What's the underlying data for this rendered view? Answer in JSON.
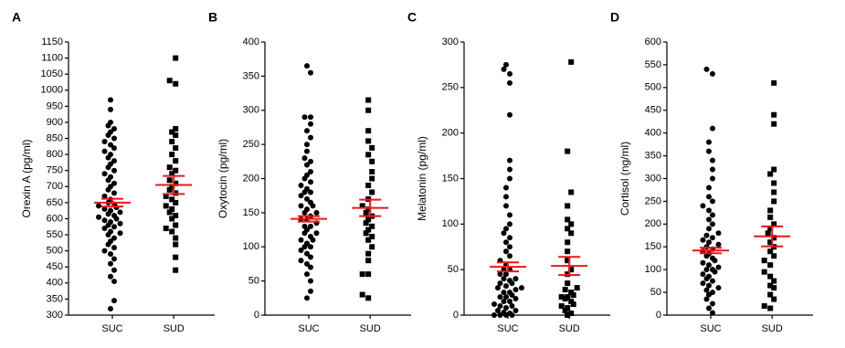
{
  "chart_data": [
    {
      "type": "strip",
      "panel_label": "A",
      "ylabel": "Orexin A (pg/ml)",
      "categories": [
        "SUC",
        "SUD"
      ],
      "markers": [
        "circle",
        "square"
      ],
      "point_color": "#000000",
      "mean_color": "#e8191a",
      "ylim": [
        300,
        1150
      ],
      "yticks": [
        300,
        350,
        400,
        450,
        500,
        550,
        600,
        650,
        700,
        750,
        800,
        850,
        900,
        950,
        1000,
        1050,
        1100,
        1150
      ],
      "groups": [
        {
          "values": [
            320,
            345,
            405,
            420,
            440,
            460,
            475,
            490,
            500,
            510,
            520,
            530,
            540,
            550,
            555,
            560,
            570,
            575,
            580,
            585,
            590,
            595,
            600,
            605,
            610,
            615,
            620,
            625,
            630,
            635,
            640,
            645,
            650,
            660,
            670,
            680,
            690,
            700,
            710,
            720,
            730,
            740,
            750,
            760,
            770,
            780,
            790,
            800,
            810,
            820,
            830,
            840,
            850,
            860,
            870,
            880,
            890,
            900,
            940,
            970
          ],
          "mean": 650,
          "sem": 12
        },
        {
          "values": [
            440,
            480,
            520,
            540,
            560,
            570,
            580,
            600,
            610,
            620,
            630,
            640,
            650,
            660,
            670,
            680,
            690,
            700,
            710,
            720,
            740,
            750,
            760,
            780,
            800,
            820,
            840,
            860,
            870,
            880,
            1020,
            1030,
            1100
          ],
          "mean": 705,
          "sem": 28
        }
      ]
    },
    {
      "type": "strip",
      "panel_label": "B",
      "ylabel": "Oxytocin (pg/ml)",
      "categories": [
        "SUC",
        "SUD"
      ],
      "markers": [
        "circle",
        "square"
      ],
      "point_color": "#000000",
      "mean_color": "#e8191a",
      "ylim": [
        0,
        400
      ],
      "yticks": [
        0,
        50,
        100,
        150,
        200,
        250,
        300,
        350,
        400
      ],
      "groups": [
        {
          "values": [
            25,
            35,
            50,
            60,
            70,
            75,
            80,
            85,
            90,
            95,
            100,
            100,
            105,
            110,
            110,
            115,
            120,
            120,
            125,
            130,
            130,
            135,
            140,
            140,
            145,
            150,
            150,
            155,
            160,
            160,
            165,
            170,
            175,
            180,
            180,
            185,
            190,
            195,
            200,
            205,
            210,
            220,
            225,
            230,
            240,
            250,
            260,
            270,
            280,
            290,
            290,
            355,
            365
          ],
          "mean": 141,
          "sem": 4
        },
        {
          "values": [
            25,
            30,
            60,
            60,
            80,
            90,
            100,
            110,
            115,
            120,
            125,
            130,
            135,
            140,
            145,
            150,
            155,
            160,
            170,
            180,
            190,
            200,
            210,
            225,
            235,
            245,
            255,
            270,
            300,
            315
          ],
          "mean": 157,
          "sem": 12
        }
      ]
    },
    {
      "type": "strip",
      "panel_label": "C",
      "ylabel": "Melatonin (pg/ml)",
      "categories": [
        "SUC",
        "SUD"
      ],
      "markers": [
        "circle",
        "square"
      ],
      "point_color": "#000000",
      "mean_color": "#e8191a",
      "ylim": [
        0,
        300
      ],
      "yticks": [
        0,
        50,
        100,
        150,
        200,
        250,
        300
      ],
      "groups": [
        {
          "values": [
            0,
            0,
            0,
            0,
            2,
            3,
            5,
            5,
            8,
            10,
            10,
            12,
            15,
            15,
            18,
            20,
            20,
            22,
            25,
            25,
            28,
            30,
            30,
            32,
            35,
            35,
            38,
            40,
            40,
            45,
            45,
            50,
            50,
            55,
            60,
            65,
            70,
            75,
            80,
            85,
            90,
            95,
            100,
            110,
            120,
            130,
            140,
            150,
            160,
            170,
            220,
            255,
            265,
            270,
            275
          ],
          "mean": 53,
          "sem": 5
        },
        {
          "values": [
            0,
            2,
            5,
            8,
            10,
            12,
            15,
            18,
            20,
            20,
            22,
            25,
            28,
            30,
            35,
            45,
            50,
            60,
            70,
            80,
            90,
            95,
            100,
            105,
            120,
            135,
            180,
            278
          ],
          "mean": 54,
          "sem": 10
        }
      ]
    },
    {
      "type": "strip",
      "panel_label": "D",
      "ylabel": "Cortisol (ng/ml)",
      "categories": [
        "SUC",
        "SUD"
      ],
      "markers": [
        "circle",
        "square"
      ],
      "point_color": "#000000",
      "mean_color": "#e8191a",
      "ylim": [
        0,
        600
      ],
      "yticks": [
        0,
        50,
        100,
        150,
        200,
        250,
        300,
        350,
        400,
        450,
        500,
        550,
        600
      ],
      "groups": [
        {
          "values": [
            5,
            15,
            25,
            35,
            45,
            50,
            55,
            60,
            65,
            70,
            75,
            80,
            85,
            90,
            95,
            100,
            100,
            105,
            110,
            115,
            120,
            125,
            130,
            135,
            140,
            145,
            150,
            155,
            160,
            165,
            170,
            175,
            180,
            190,
            200,
            210,
            220,
            230,
            240,
            250,
            260,
            280,
            300,
            320,
            340,
            360,
            380,
            410,
            530,
            540
          ],
          "mean": 142,
          "sem": 6
        },
        {
          "values": [
            15,
            20,
            35,
            45,
            60,
            65,
            75,
            85,
            95,
            110,
            120,
            130,
            140,
            150,
            160,
            170,
            180,
            190,
            200,
            215,
            230,
            250,
            270,
            290,
            310,
            320,
            420,
            440,
            510
          ],
          "mean": 173,
          "sem": 22
        }
      ]
    }
  ]
}
